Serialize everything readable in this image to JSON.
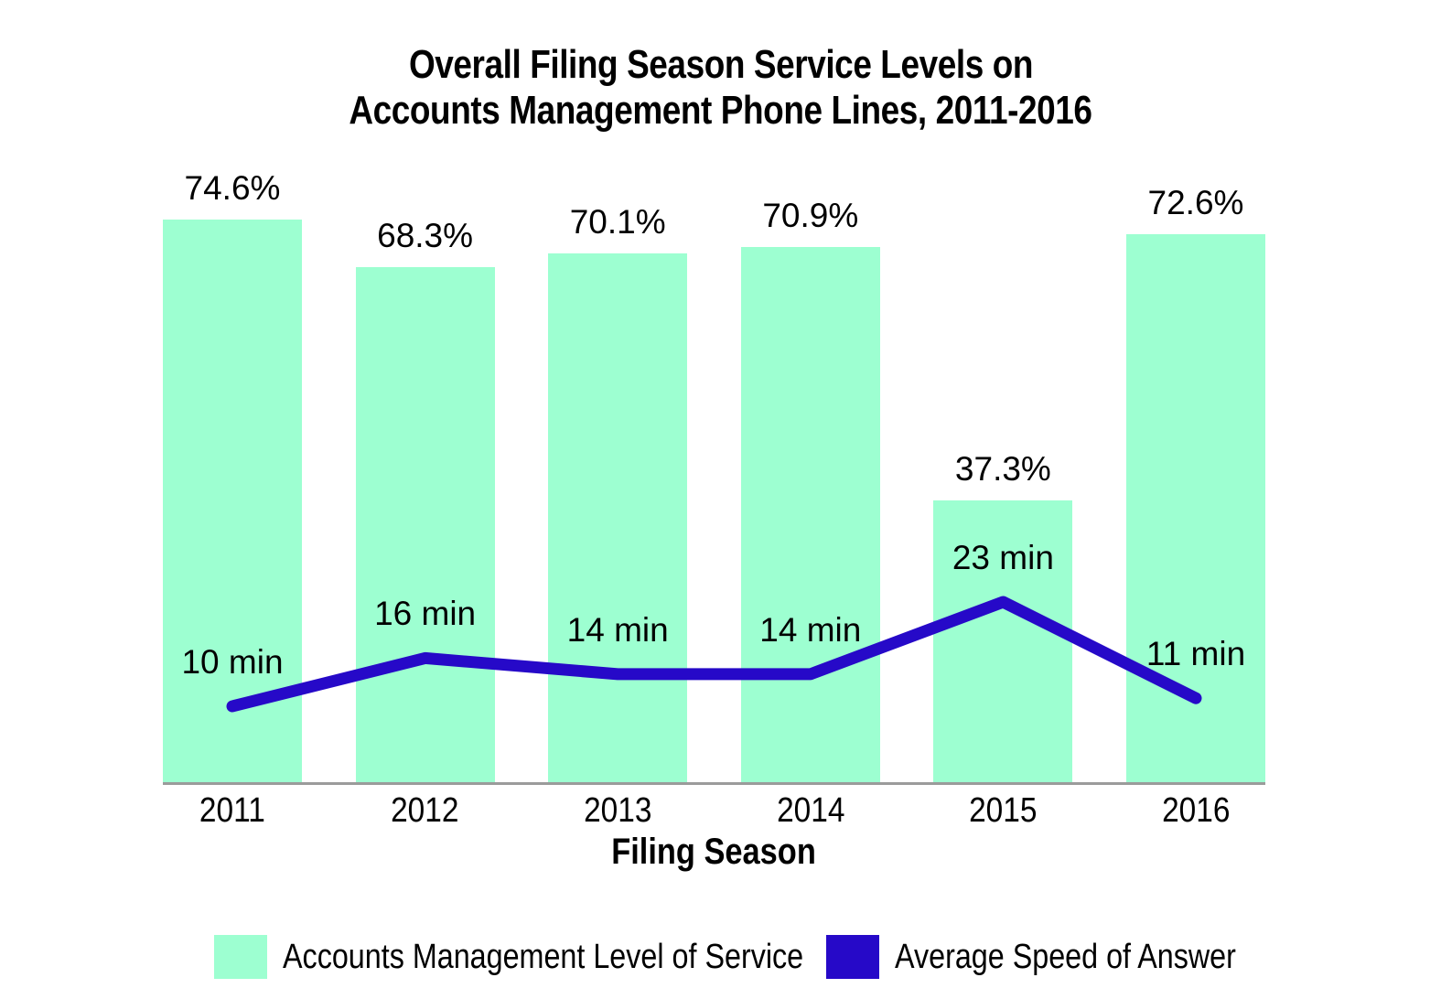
{
  "title": {
    "line1": "Overall Filing Season Service Levels on",
    "line2": "Accounts Management Phone Lines, 2011-2016"
  },
  "chart_data": {
    "type": "bar+line",
    "title": "Overall Filing Season Service Levels on Accounts Management Phone Lines, 2011-2016",
    "categories": [
      "2011",
      "2012",
      "2013",
      "2014",
      "2015",
      "2016"
    ],
    "series": [
      {
        "name": "Accounts Management Level of Service",
        "type": "bar",
        "unit": "percent",
        "values": [
          74.6,
          68.3,
          70.1,
          70.9,
          37.3,
          72.6
        ],
        "labels": [
          "74.6%",
          "68.3%",
          "70.1%",
          "70.9%",
          "37.3%",
          "72.6%"
        ],
        "color": "#9DFFD1"
      },
      {
        "name": "Average Speed of Answer",
        "type": "line",
        "unit": "minutes",
        "values": [
          10,
          16,
          14,
          14,
          23,
          11
        ],
        "labels": [
          "10 min",
          "16 min",
          "14 min",
          "14 min",
          "23 min",
          "11 min"
        ],
        "color": "#2609C8"
      }
    ],
    "xlabel": "Filing Season",
    "ylabel": "",
    "bar_axis_range": [
      0,
      80
    ],
    "line_axis_range": [
      0,
      30
    ],
    "grid": false,
    "legend_position": "bottom",
    "data_labels_visible": true
  },
  "colors": {
    "bar_fill": "#9DFFD1",
    "line_stroke": "#2609C8",
    "axis_line": "#9B9B9B",
    "label_text": "#000000",
    "background": "#FFFFFF"
  }
}
